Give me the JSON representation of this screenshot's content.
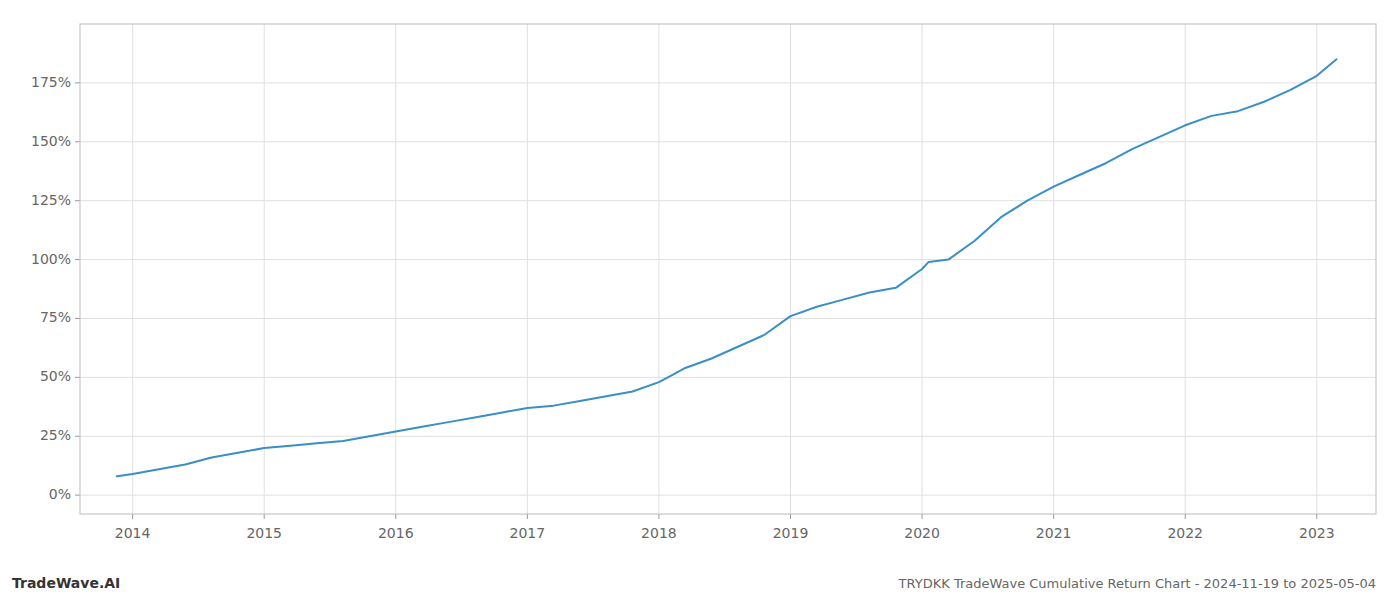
{
  "chart_data": {
    "type": "line",
    "title": "TRYDKK TradeWave Cumulative Return Chart - 2024-11-19 to 2025-05-04",
    "annotations": [
      "TradeWave.AI"
    ],
    "color": "#3a8fc7",
    "grid": true,
    "x": [
      2013.88,
      2014.0,
      2014.2,
      2014.4,
      2014.6,
      2014.8,
      2015.0,
      2015.2,
      2015.4,
      2015.6,
      2015.8,
      2016.0,
      2016.2,
      2016.4,
      2016.6,
      2016.8,
      2017.0,
      2017.2,
      2017.4,
      2017.6,
      2017.8,
      2018.0,
      2018.1,
      2018.2,
      2018.4,
      2018.6,
      2018.8,
      2019.0,
      2019.2,
      2019.4,
      2019.6,
      2019.8,
      2020.0,
      2020.05,
      2020.2,
      2020.4,
      2020.6,
      2020.8,
      2021.0,
      2021.2,
      2021.4,
      2021.6,
      2021.8,
      2022.0,
      2022.2,
      2022.4,
      2022.6,
      2022.8,
      2023.0,
      2023.15
    ],
    "values": [
      8,
      9,
      11,
      13,
      16,
      18,
      20,
      21,
      22,
      23,
      25,
      27,
      29,
      31,
      33,
      35,
      37,
      38,
      40,
      42,
      44,
      48,
      51,
      54,
      58,
      63,
      68,
      76,
      80,
      83,
      86,
      88,
      96,
      99,
      100,
      108,
      118,
      125,
      131,
      136,
      141,
      147,
      152,
      157,
      161,
      163,
      167,
      172,
      178,
      185
    ],
    "xlim": [
      2013.6,
      2023.45
    ],
    "ylim": [
      -8,
      200
    ],
    "xticks": [
      2014,
      2015,
      2016,
      2017,
      2018,
      2019,
      2020,
      2021,
      2022,
      2023
    ],
    "yticks": [
      {
        "value": 0,
        "label": "0%"
      },
      {
        "value": 25,
        "label": "25%"
      },
      {
        "value": 50,
        "label": "50%"
      },
      {
        "value": 75,
        "label": "75%"
      },
      {
        "value": 100,
        "label": "100%"
      },
      {
        "value": 125,
        "label": "125%"
      },
      {
        "value": 150,
        "label": "150%"
      },
      {
        "value": 175,
        "label": "175%"
      }
    ]
  }
}
